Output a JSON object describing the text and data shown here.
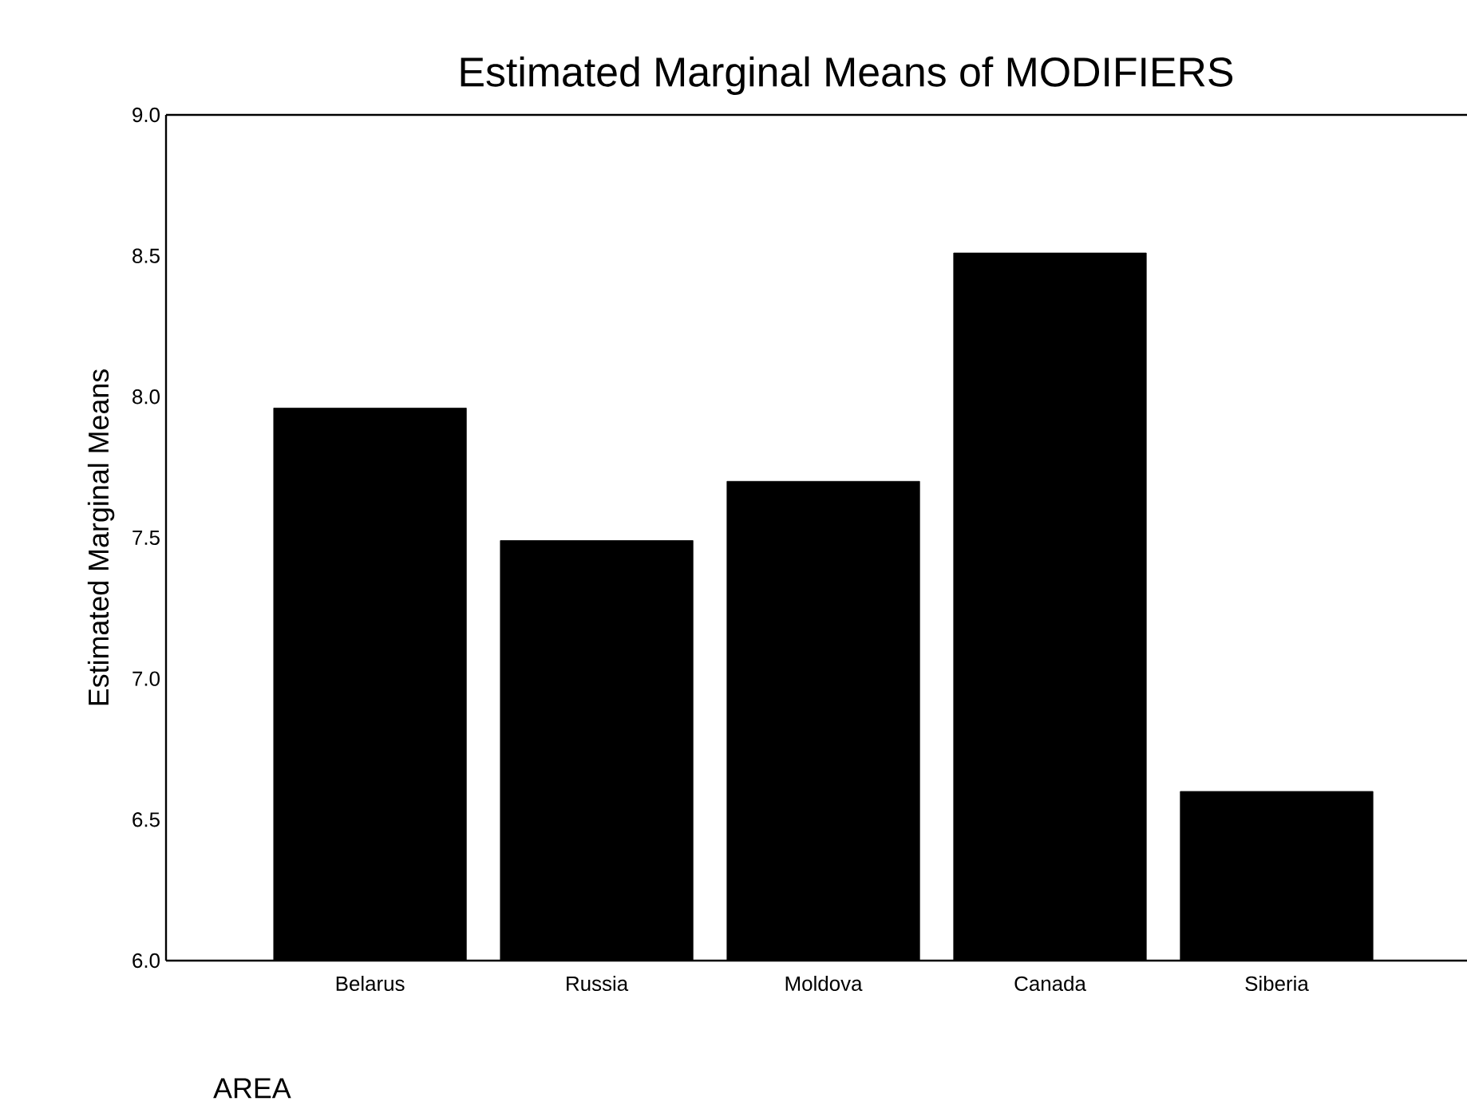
{
  "chart_data": {
    "type": "bar",
    "title": "Estimated Marginal Means of MODIFIERS",
    "xlabel": "AREA",
    "ylabel": "Estimated Marginal Means",
    "categories": [
      "Belarus",
      "Russia",
      "Moldova",
      "Canada",
      "Siberia"
    ],
    "values": [
      7.96,
      7.49,
      7.7,
      8.51,
      6.6
    ],
    "color": "#000000",
    "ylim": [
      6.0,
      9.0
    ],
    "yticks": [
      {
        "value": 6.0,
        "label": "6.0"
      },
      {
        "value": 6.5,
        "label": "6.5"
      },
      {
        "value": 7.0,
        "label": "7.0"
      },
      {
        "value": 7.5,
        "label": "7.5"
      },
      {
        "value": 8.0,
        "label": "8.0"
      },
      {
        "value": 8.5,
        "label": "8.5"
      },
      {
        "value": 9.0,
        "label": "9.0"
      }
    ],
    "grid": false
  }
}
